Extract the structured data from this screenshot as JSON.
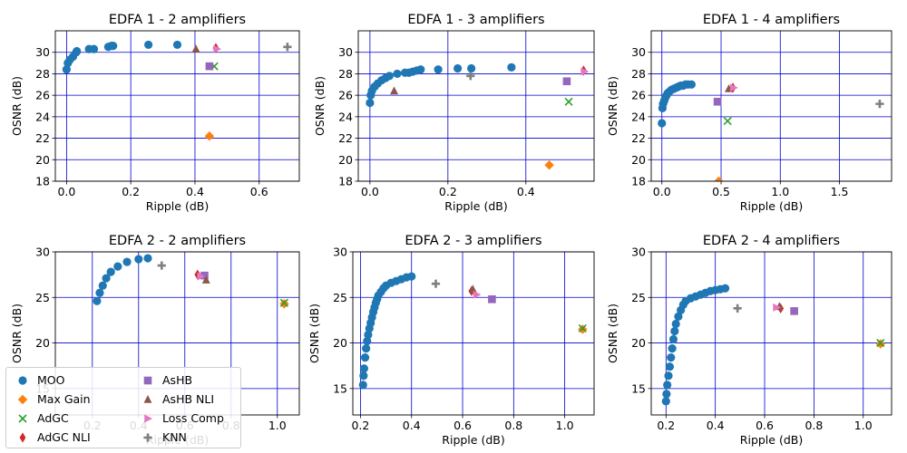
{
  "chart_data": [
    {
      "type": "scatter",
      "title": "EDFA 1 - 2 amplifiers",
      "xlabel": "Ripple (dB)",
      "ylabel": "OSNR (dB)",
      "xlim": [
        -0.035,
        0.725
      ],
      "ylim": [
        18,
        32
      ],
      "xticks": [
        0,
        0.2,
        0.4,
        0.6
      ],
      "xtick_labels": [
        "0.0",
        "0.2",
        "0.4",
        "0.6"
      ],
      "yticks": [
        18,
        20,
        22,
        24,
        26,
        28,
        30
      ],
      "ytick_labels": [
        "18",
        "20",
        "22",
        "24",
        "26",
        "28",
        "30"
      ],
      "grid": true,
      "series": [
        {
          "name": "MOO",
          "points": [
            [
              0.0,
              28.4
            ],
            [
              0.004,
              29.0
            ],
            [
              0.01,
              29.3
            ],
            [
              0.02,
              29.6
            ],
            [
              0.03,
              30.0
            ],
            [
              0.032,
              30.1
            ],
            [
              0.07,
              30.3
            ],
            [
              0.085,
              30.3
            ],
            [
              0.13,
              30.5
            ],
            [
              0.14,
              30.6
            ],
            [
              0.145,
              30.6
            ],
            [
              0.255,
              30.7
            ],
            [
              0.345,
              30.7
            ]
          ]
        },
        {
          "name": "Max Gain",
          "points": [
            [
              0.445,
              22.2
            ]
          ]
        },
        {
          "name": "AdGC",
          "points": [
            [
              0.46,
              28.7
            ]
          ]
        },
        {
          "name": "AdGC NLI",
          "points": [
            [
              0.465,
              30.4
            ]
          ]
        },
        {
          "name": "AsHB",
          "points": [
            [
              0.445,
              28.7
            ]
          ]
        },
        {
          "name": "AsHB NLI",
          "points": [
            [
              0.403,
              30.3
            ]
          ]
        },
        {
          "name": "Loss Comp",
          "points": [
            [
              0.468,
              30.3
            ]
          ]
        },
        {
          "name": "KNN",
          "points": [
            [
              0.688,
              30.5
            ]
          ]
        }
      ]
    },
    {
      "type": "scatter",
      "title": "EDFA 1 - 3 amplifiers",
      "xlabel": "Ripple (dB)",
      "ylabel": "OSNR (dB)",
      "xlim": [
        -0.03,
        0.575
      ],
      "ylim": [
        18,
        32
      ],
      "xticks": [
        0,
        0.2,
        0.4
      ],
      "xtick_labels": [
        "0.0",
        "0.2",
        "0.4"
      ],
      "yticks": [
        18,
        20,
        22,
        24,
        26,
        28,
        30
      ],
      "ytick_labels": [
        "18",
        "20",
        "22",
        "24",
        "26",
        "28",
        "30"
      ],
      "grid": true,
      "series": [
        {
          "name": "MOO",
          "points": [
            [
              0.0,
              25.3
            ],
            [
              0.002,
              26.0
            ],
            [
              0.005,
              26.4
            ],
            [
              0.012,
              26.8
            ],
            [
              0.02,
              27.1
            ],
            [
              0.03,
              27.4
            ],
            [
              0.04,
              27.6
            ],
            [
              0.05,
              27.8
            ],
            [
              0.07,
              28.0
            ],
            [
              0.09,
              28.1
            ],
            [
              0.1,
              28.1
            ],
            [
              0.11,
              28.2
            ],
            [
              0.12,
              28.3
            ],
            [
              0.13,
              28.4
            ],
            [
              0.175,
              28.4
            ],
            [
              0.225,
              28.5
            ],
            [
              0.26,
              28.5
            ],
            [
              0.363,
              28.6
            ]
          ]
        },
        {
          "name": "Max Gain",
          "points": [
            [
              0.46,
              19.5
            ]
          ]
        },
        {
          "name": "AdGC",
          "points": [
            [
              0.51,
              25.4
            ]
          ]
        },
        {
          "name": "AdGC NLI",
          "points": [
            [
              0.548,
              28.3
            ]
          ]
        },
        {
          "name": "AsHB",
          "points": [
            [
              0.505,
              27.3
            ]
          ]
        },
        {
          "name": "AsHB NLI",
          "points": [
            [
              0.062,
              26.4
            ]
          ]
        },
        {
          "name": "Loss Comp",
          "points": [
            [
              0.55,
              28.2
            ]
          ]
        },
        {
          "name": "KNN",
          "points": [
            [
              0.258,
              27.8
            ]
          ]
        }
      ]
    },
    {
      "type": "scatter",
      "title": "EDFA 1 - 4 amplifiers",
      "xlabel": "Ripple (dB)",
      "ylabel": "OSNR (dB)",
      "xlim": [
        -0.09,
        1.94
      ],
      "ylim": [
        18,
        32
      ],
      "xticks": [
        0,
        0.5,
        1.0,
        1.5
      ],
      "xtick_labels": [
        "0.0",
        "0.5",
        "1.0",
        "1.5"
      ],
      "yticks": [
        18,
        20,
        22,
        24,
        26,
        28,
        30
      ],
      "ytick_labels": [
        "18",
        "20",
        "22",
        "24",
        "26",
        "28",
        "30"
      ],
      "grid": true,
      "series": [
        {
          "name": "MOO",
          "points": [
            [
              0.0,
              23.4
            ],
            [
              0.005,
              24.8
            ],
            [
              0.01,
              25.2
            ],
            [
              0.02,
              25.5
            ],
            [
              0.03,
              25.8
            ],
            [
              0.04,
              26.0
            ],
            [
              0.05,
              26.2
            ],
            [
              0.06,
              26.3
            ],
            [
              0.08,
              26.5
            ],
            [
              0.1,
              26.6
            ],
            [
              0.12,
              26.7
            ],
            [
              0.14,
              26.8
            ],
            [
              0.16,
              26.9
            ],
            [
              0.18,
              26.9
            ],
            [
              0.2,
              27.0
            ],
            [
              0.22,
              27.0
            ],
            [
              0.25,
              27.0
            ]
          ]
        },
        {
          "name": "Max Gain",
          "points": [
            [
              0.48,
              18.0
            ]
          ]
        },
        {
          "name": "AdGC",
          "points": [
            [
              0.555,
              23.6
            ]
          ]
        },
        {
          "name": "AdGC NLI",
          "points": [
            [
              0.6,
              26.7
            ]
          ]
        },
        {
          "name": "AsHB",
          "points": [
            [
              0.47,
              25.4
            ]
          ]
        },
        {
          "name": "AsHB NLI",
          "points": [
            [
              0.565,
              26.6
            ]
          ]
        },
        {
          "name": "Loss Comp",
          "points": [
            [
              0.605,
              26.7
            ]
          ]
        },
        {
          "name": "KNN",
          "points": [
            [
              1.84,
              25.2
            ]
          ]
        }
      ]
    },
    {
      "type": "scatter",
      "title": "EDFA 2 - 2 amplifiers",
      "xlabel": "Ripple (dB)",
      "ylabel": "OSNR (dB)",
      "xlim": [
        0.04,
        1.095
      ],
      "ylim": [
        12.1,
        30
      ],
      "xticks": [
        0.2,
        0.4,
        0.6,
        0.8,
        1.0
      ],
      "xtick_labels": [
        "0.2",
        "0.4",
        "0.6",
        "0.8",
        "1.0"
      ],
      "yticks": [
        15,
        20,
        25,
        30
      ],
      "ytick_labels": [
        "15",
        "20",
        "25",
        "30"
      ],
      "grid": true,
      "series": [
        {
          "name": "MOO",
          "points": [
            [
              0.22,
              24.6
            ],
            [
              0.232,
              25.5
            ],
            [
              0.245,
              26.3
            ],
            [
              0.26,
              27.1
            ],
            [
              0.28,
              27.8
            ],
            [
              0.31,
              28.4
            ],
            [
              0.35,
              28.9
            ],
            [
              0.4,
              29.2
            ],
            [
              0.44,
              29.3
            ]
          ]
        },
        {
          "name": "Max Gain",
          "points": [
            [
              1.03,
              24.3
            ]
          ]
        },
        {
          "name": "AdGC",
          "points": [
            [
              1.03,
              24.4
            ]
          ]
        },
        {
          "name": "AdGC NLI",
          "points": [
            [
              0.655,
              27.5
            ]
          ]
        },
        {
          "name": "AsHB",
          "points": [
            [
              0.685,
              27.4
            ]
          ]
        },
        {
          "name": "AsHB NLI",
          "points": [
            [
              0.692,
              26.9
            ]
          ]
        },
        {
          "name": "Loss Comp",
          "points": [
            [
              0.668,
              27.3
            ]
          ]
        },
        {
          "name": "KNN",
          "points": [
            [
              0.5,
              28.5
            ]
          ]
        }
      ]
    },
    {
      "type": "scatter",
      "title": "EDFA 2 - 3 amplifiers",
      "xlabel": "Ripple (dB)",
      "ylabel": "OSNR (dB)",
      "xlim": [
        0.17,
        1.115
      ],
      "ylim": [
        12.1,
        30
      ],
      "xticks": [
        0.2,
        0.4,
        0.6,
        0.8,
        1.0
      ],
      "xtick_labels": [
        "0.2",
        "0.4",
        "0.6",
        "0.8",
        "1.0"
      ],
      "yticks": [
        15,
        20,
        25,
        30
      ],
      "ytick_labels": [
        "15",
        "20",
        "25",
        "30"
      ],
      "grid": true,
      "series": [
        {
          "name": "MOO",
          "points": [
            [
              0.21,
              15.4
            ],
            [
              0.212,
              16.4
            ],
            [
              0.214,
              17.2
            ],
            [
              0.218,
              18.4
            ],
            [
              0.222,
              19.4
            ],
            [
              0.226,
              20.2
            ],
            [
              0.23,
              20.9
            ],
            [
              0.235,
              21.6
            ],
            [
              0.24,
              22.2
            ],
            [
              0.245,
              22.8
            ],
            [
              0.25,
              23.4
            ],
            [
              0.255,
              23.9
            ],
            [
              0.26,
              24.4
            ],
            [
              0.265,
              24.8
            ],
            [
              0.27,
              25.2
            ],
            [
              0.28,
              25.6
            ],
            [
              0.29,
              26.0
            ],
            [
              0.3,
              26.3
            ],
            [
              0.32,
              26.6
            ],
            [
              0.34,
              26.8
            ],
            [
              0.36,
              27.0
            ],
            [
              0.38,
              27.2
            ],
            [
              0.4,
              27.3
            ]
          ]
        },
        {
          "name": "Max Gain",
          "points": [
            [
              1.07,
              21.5
            ]
          ]
        },
        {
          "name": "AdGC",
          "points": [
            [
              1.07,
              21.6
            ]
          ]
        },
        {
          "name": "AdGC NLI",
          "points": [
            [
              0.635,
              25.7
            ]
          ]
        },
        {
          "name": "AsHB",
          "points": [
            [
              0.715,
              24.8
            ]
          ]
        },
        {
          "name": "AsHB NLI",
          "points": [
            [
              0.64,
              25.9
            ]
          ]
        },
        {
          "name": "Loss Comp",
          "points": [
            [
              0.655,
              25.3
            ]
          ]
        },
        {
          "name": "KNN",
          "points": [
            [
              0.495,
              26.5
            ]
          ]
        }
      ]
    },
    {
      "type": "scatter",
      "title": "EDFA 2 - 4 amplifiers",
      "xlabel": "Ripple (dB)",
      "ylabel": "OSNR (dB)",
      "xlim": [
        0.14,
        1.115
      ],
      "ylim": [
        12.1,
        30
      ],
      "xticks": [
        0.2,
        0.4,
        0.6,
        0.8,
        1.0
      ],
      "xtick_labels": [
        "0.2",
        "0.4",
        "0.6",
        "0.8",
        "1.0"
      ],
      "yticks": [
        15,
        20,
        25,
        30
      ],
      "ytick_labels": [
        "15",
        "20",
        "25",
        "30"
      ],
      "grid": true,
      "series": [
        {
          "name": "MOO",
          "points": [
            [
              0.2,
              13.6
            ],
            [
              0.202,
              14.4
            ],
            [
              0.205,
              15.4
            ],
            [
              0.21,
              16.4
            ],
            [
              0.215,
              17.4
            ],
            [
              0.22,
              18.4
            ],
            [
              0.225,
              19.4
            ],
            [
              0.23,
              20.4
            ],
            [
              0.235,
              21.3
            ],
            [
              0.24,
              22.1
            ],
            [
              0.25,
              22.9
            ],
            [
              0.26,
              23.6
            ],
            [
              0.27,
              24.2
            ],
            [
              0.28,
              24.6
            ],
            [
              0.3,
              24.9
            ],
            [
              0.32,
              25.1
            ],
            [
              0.34,
              25.3
            ],
            [
              0.36,
              25.5
            ],
            [
              0.38,
              25.7
            ],
            [
              0.4,
              25.8
            ],
            [
              0.42,
              25.9
            ],
            [
              0.44,
              26.0
            ]
          ]
        },
        {
          "name": "Max Gain",
          "points": [
            [
              1.07,
              19.9
            ]
          ]
        },
        {
          "name": "AdGC",
          "points": [
            [
              1.07,
              20.0
            ]
          ]
        },
        {
          "name": "AdGC NLI",
          "points": [
            [
              0.665,
              23.8
            ]
          ]
        },
        {
          "name": "AsHB",
          "points": [
            [
              0.72,
              23.5
            ]
          ]
        },
        {
          "name": "AsHB NLI",
          "points": [
            [
              0.66,
              24.0
            ]
          ]
        },
        {
          "name": "Loss Comp",
          "points": [
            [
              0.648,
              23.9
            ]
          ]
        },
        {
          "name": "KNN",
          "points": [
            [
              0.49,
              23.8
            ]
          ]
        }
      ]
    }
  ],
  "legend": {
    "position": "lower-left",
    "columns": [
      [
        {
          "label": "MOO",
          "marker": "circle",
          "color": "#1f77b4"
        },
        {
          "label": "Max Gain",
          "marker": "diamond",
          "color": "#ff7f0e"
        },
        {
          "label": "AdGC",
          "marker": "x",
          "color": "#2ca02c"
        },
        {
          "label": "AdGC NLI",
          "marker": "thin-diamond",
          "color": "#d62728"
        }
      ],
      [
        {
          "label": "AsHB",
          "marker": "square",
          "color": "#9467bd"
        },
        {
          "label": "AsHB NLI",
          "marker": "triangle-up",
          "color": "#8c564b"
        },
        {
          "label": "Loss Comp",
          "marker": "triangle-right",
          "color": "#e377c2"
        },
        {
          "label": "KNN",
          "marker": "plus",
          "color": "#7f7f7f"
        }
      ]
    ]
  },
  "styles": {
    "MOO": {
      "marker": "circle",
      "color": "#1f77b4"
    },
    "Max Gain": {
      "marker": "diamond",
      "color": "#ff7f0e"
    },
    "AdGC": {
      "marker": "x",
      "color": "#2ca02c"
    },
    "AdGC NLI": {
      "marker": "thin-diamond",
      "color": "#d62728"
    },
    "AsHB": {
      "marker": "square",
      "color": "#9467bd"
    },
    "AsHB NLI": {
      "marker": "triangle-up",
      "color": "#8c564b"
    },
    "Loss Comp": {
      "marker": "triangle-right",
      "color": "#e377c2"
    },
    "KNN": {
      "marker": "plus",
      "color": "#7f7f7f"
    },
    "grid_color": "#0000cc"
  }
}
